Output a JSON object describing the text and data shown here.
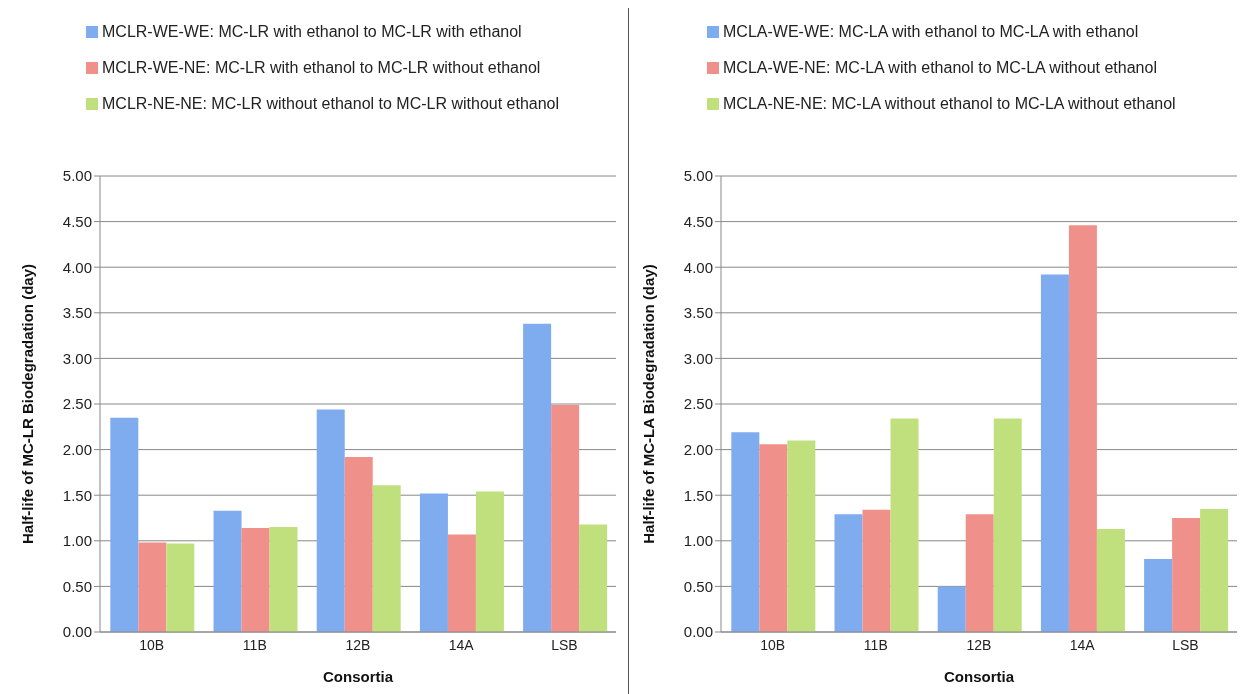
{
  "chart_data": [
    {
      "type": "bar",
      "xlabel": "Consortia",
      "ylabel": "Half-life of MC-LR Biodegradation (day)",
      "categories": [
        "10B",
        "11B",
        "12B",
        "14A",
        "LSB"
      ],
      "series": [
        {
          "name": "MCLR-WE-WE: MC-LR with ethanol to MC-LR with ethanol",
          "color": "#7fabef",
          "values": [
            2.35,
            1.33,
            2.44,
            1.52,
            3.38
          ]
        },
        {
          "name": "MCLR-WE-NE: MC-LR with ethanol to MC-LR without ethanol",
          "color": "#f0908a",
          "values": [
            0.98,
            1.14,
            1.92,
            1.07,
            2.49
          ]
        },
        {
          "name": "MCLR-NE-NE: MC-LR without ethanol to MC-LR without ethanol",
          "color": "#c0e07e",
          "values": [
            0.97,
            1.15,
            1.61,
            1.54,
            1.18
          ]
        }
      ],
      "ylim": [
        0,
        5
      ],
      "yticks": [
        {
          "value": 0,
          "label": "0.00"
        },
        {
          "value": 0.5,
          "label": "0.50"
        },
        {
          "value": 1,
          "label": "1.00"
        },
        {
          "value": 1.5,
          "label": "1.50"
        },
        {
          "value": 2,
          "label": "2.00"
        },
        {
          "value": 2.5,
          "label": "2.50"
        },
        {
          "value": 3,
          "label": "3.00"
        },
        {
          "value": 3.5,
          "label": "3.50"
        },
        {
          "value": 4,
          "label": "4.00"
        },
        {
          "value": 4.5,
          "label": "4.50"
        },
        {
          "value": 5,
          "label": "5.00"
        }
      ],
      "grid": "y",
      "legend": "top"
    },
    {
      "type": "bar",
      "xlabel": "Consortia",
      "ylabel": "Half-life of MC-LA Biodegradation (day)",
      "categories": [
        "10B",
        "11B",
        "12B",
        "14A",
        "LSB"
      ],
      "series": [
        {
          "name": "MCLA-WE-WE: MC-LA with ethanol to MC-LA with ethanol",
          "color": "#7fabef",
          "values": [
            2.19,
            1.29,
            0.5,
            3.92,
            0.8
          ]
        },
        {
          "name": "MCLA-WE-NE: MC-LA with ethanol to MC-LA without ethanol",
          "color": "#f0908a",
          "values": [
            2.06,
            1.34,
            1.29,
            4.46,
            1.25
          ]
        },
        {
          "name": "MCLA-NE-NE: MC-LA without ethanol to MC-LA without ethanol",
          "color": "#c0e07e",
          "values": [
            2.1,
            2.34,
            2.34,
            1.13,
            1.35
          ]
        }
      ],
      "ylim": [
        0,
        5
      ],
      "yticks": [
        {
          "value": 0,
          "label": "0.00"
        },
        {
          "value": 0.5,
          "label": "0.50"
        },
        {
          "value": 1,
          "label": "1.00"
        },
        {
          "value": 1.5,
          "label": "1.50"
        },
        {
          "value": 2,
          "label": "2.00"
        },
        {
          "value": 2.5,
          "label": "2.50"
        },
        {
          "value": 3,
          "label": "3.00"
        },
        {
          "value": 3.5,
          "label": "3.50"
        },
        {
          "value": 4,
          "label": "4.00"
        },
        {
          "value": 4.5,
          "label": "4.50"
        },
        {
          "value": 5,
          "label": "5.00"
        }
      ],
      "grid": "y",
      "legend": "top"
    }
  ]
}
